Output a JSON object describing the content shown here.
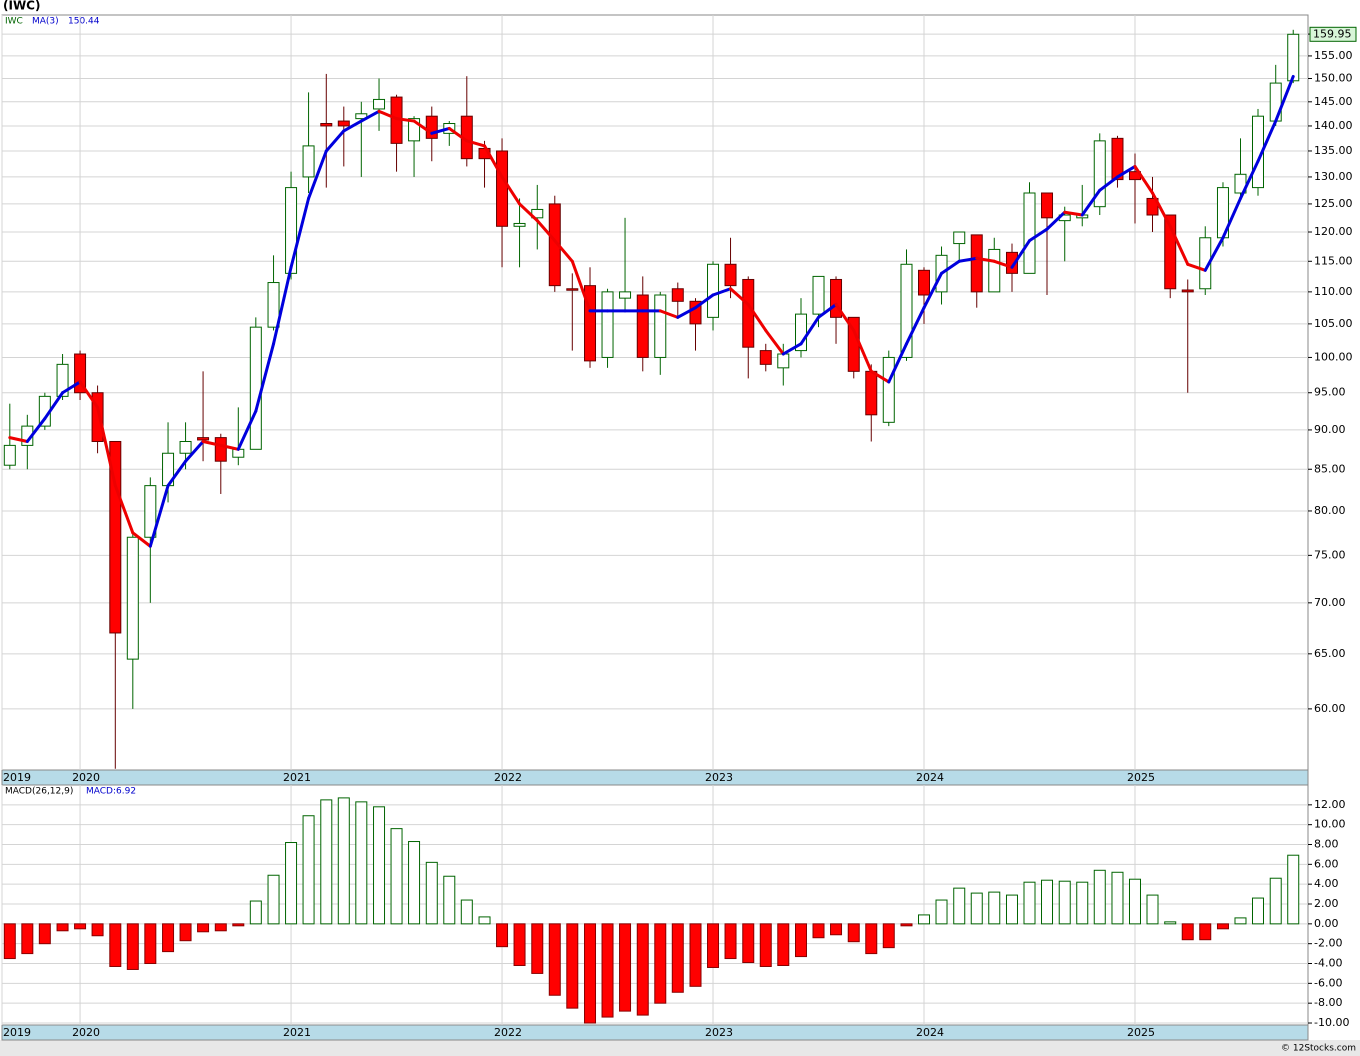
{
  "chart_data": [
    {
      "type": "candlestick",
      "title": "(IWC)",
      "symbol": "IWC",
      "log": true,
      "grid": true,
      "up_color": "#006400",
      "down_color": "#ff0000",
      "ma_up_color": "#0000dd",
      "ma_down_color": "#ee0000",
      "xlim": [
        2019.63,
        2025.82
      ],
      "xticks": [
        {
          "value": 2019.63,
          "label": "2019"
        },
        2020,
        2021,
        2022,
        2023,
        2024,
        2025
      ],
      "ylim": [
        54.9,
        164.5
      ],
      "yticks": [
        {
          "value": 60,
          "label": "60.00"
        },
        {
          "value": 65,
          "label": "65.00"
        },
        {
          "value": 70,
          "label": "70.00"
        },
        {
          "value": 75,
          "label": "75.00"
        },
        {
          "value": 80,
          "label": "80.00"
        },
        {
          "value": 85,
          "label": "85.00"
        },
        {
          "value": 90,
          "label": "90.00"
        },
        {
          "value": 95,
          "label": "95.00"
        },
        {
          "value": 100,
          "label": "100.00"
        },
        {
          "value": 105,
          "label": "105.00"
        },
        {
          "value": 110,
          "label": "110.00"
        },
        {
          "value": 115,
          "label": "115.00"
        },
        {
          "value": 120,
          "label": "120.00"
        },
        {
          "value": 125,
          "label": "125.00"
        },
        {
          "value": 130,
          "label": "130.00"
        },
        {
          "value": 135,
          "label": "135.00"
        },
        {
          "value": 140,
          "label": "140.00"
        },
        {
          "value": 145,
          "label": "145.00"
        },
        {
          "value": 150,
          "label": "150.00"
        },
        {
          "value": 155,
          "label": "155.00"
        },
        {
          "value": 160,
          "label": "160.00"
        }
      ],
      "x": [
        2019.667,
        2019.75,
        2019.833,
        2019.917,
        2020,
        2020.083,
        2020.167,
        2020.25,
        2020.333,
        2020.417,
        2020.5,
        2020.583,
        2020.667,
        2020.75,
        2020.833,
        2020.917,
        2021,
        2021.083,
        2021.167,
        2021.25,
        2021.333,
        2021.417,
        2021.5,
        2021.583,
        2021.667,
        2021.75,
        2021.833,
        2021.917,
        2022,
        2022.083,
        2022.167,
        2022.25,
        2022.333,
        2022.417,
        2022.5,
        2022.583,
        2022.667,
        2022.75,
        2022.833,
        2022.917,
        2023,
        2023.083,
        2023.167,
        2023.25,
        2023.333,
        2023.417,
        2023.5,
        2023.583,
        2023.667,
        2023.75,
        2023.833,
        2023.917,
        2024,
        2024.083,
        2024.167,
        2024.25,
        2024.333,
        2024.417,
        2024.5,
        2024.583,
        2024.667,
        2024.75,
        2024.833,
        2024.917,
        2025,
        2025.083,
        2025.167,
        2025.25,
        2025.333,
        2025.417,
        2025.5,
        2025.583,
        2025.667,
        2025.75
      ],
      "open": [
        85.5,
        88,
        90.5,
        94.5,
        100.5,
        95,
        88.5,
        64.5,
        77,
        83,
        87,
        89,
        89,
        86.5,
        87.5,
        104.5,
        113,
        130,
        140.5,
        141,
        141.5,
        143.5,
        146,
        137,
        142,
        138.5,
        142,
        135.5,
        135,
        121,
        122.5,
        125,
        110.5,
        111,
        100,
        109,
        109.5,
        100,
        110.5,
        108.5,
        106,
        114.5,
        112,
        101,
        98.5,
        101,
        106.5,
        112,
        106,
        98,
        91,
        100,
        113.5,
        110,
        118,
        119.5,
        110,
        116.5,
        113,
        127,
        122,
        122.5,
        124.5,
        137.5,
        131,
        126,
        123,
        110.3,
        110.5,
        119,
        127,
        128,
        141,
        149.5
      ],
      "high": [
        93.5,
        92,
        95,
        100.5,
        101,
        96,
        88.5,
        77.5,
        84,
        91,
        91,
        98,
        89.5,
        93,
        106,
        116,
        131,
        147,
        151,
        144,
        145,
        150,
        146.5,
        142,
        144,
        141,
        150.5,
        137,
        137.5,
        126,
        128.5,
        126.5,
        113,
        114,
        110.5,
        122.5,
        112.5,
        110,
        111.5,
        109,
        115,
        119,
        112.5,
        102,
        102,
        109,
        112.5,
        112.5,
        106,
        99,
        101,
        117,
        114,
        117.5,
        120,
        119.5,
        119,
        118,
        129,
        127,
        124.5,
        128.5,
        138.5,
        138,
        134.5,
        130,
        123,
        112,
        121,
        129,
        137.5,
        143.5,
        153,
        161
      ],
      "low": [
        85,
        85,
        90,
        94,
        94,
        87,
        55,
        60,
        70,
        81,
        85,
        86,
        82,
        85.5,
        87.5,
        104,
        112,
        127,
        128,
        132,
        130,
        139,
        131,
        130,
        133,
        136,
        132,
        128,
        114,
        114,
        117,
        110,
        101,
        98.5,
        98.5,
        107,
        98,
        97.5,
        106,
        101,
        104,
        109,
        97,
        98,
        96,
        100,
        104.5,
        102,
        97,
        88.5,
        90.5,
        99.5,
        105,
        108,
        115,
        107.5,
        110,
        110,
        113,
        109.5,
        115,
        121,
        123,
        128,
        121.5,
        120,
        109,
        95,
        109.5,
        117.5,
        125.5,
        126.5,
        140,
        149
      ],
      "close": [
        88,
        90.5,
        94.5,
        99,
        95,
        88.5,
        67,
        77,
        83,
        87,
        88.5,
        88.7,
        86,
        87.5,
        104.5,
        111.5,
        128,
        136,
        140,
        140,
        142.5,
        145.5,
        136.5,
        141.5,
        137.5,
        140.5,
        133.5,
        133.5,
        121,
        121.5,
        124,
        111,
        110.3,
        99.5,
        110,
        110,
        100,
        109.5,
        108.5,
        105,
        114.5,
        111,
        101.5,
        99,
        100.5,
        106.5,
        112.5,
        106,
        98,
        92,
        100,
        114.5,
        109.5,
        116,
        120,
        110,
        117,
        113,
        127,
        122.5,
        123,
        123,
        137,
        129.5,
        129.5,
        123,
        110.5,
        110,
        119,
        128,
        130.5,
        142,
        149,
        159.95
      ],
      "ma": {
        "name": "MA(3)",
        "values": [
          89,
          88.5,
          91.5,
          95,
          96.5,
          93,
          83,
          77.5,
          76,
          83,
          86,
          88.5,
          88,
          87.5,
          92.5,
          102,
          114,
          126,
          135,
          139,
          141,
          143,
          141.5,
          141,
          138.5,
          139.5,
          137,
          136,
          130,
          125,
          122,
          118.5,
          115,
          107,
          107,
          107,
          107,
          107,
          106,
          107.5,
          109.5,
          110.5,
          108,
          104,
          100.5,
          102,
          106,
          108,
          104,
          98,
          96.5,
          102,
          107.5,
          113,
          115,
          115.5,
          115,
          114,
          118.5,
          120.5,
          123.5,
          123,
          127.5,
          130,
          132,
          127,
          121,
          114.5,
          113.5,
          119,
          126,
          133,
          141,
          150.44
        ]
      }
    },
    {
      "type": "bar",
      "name": "MACD(26,12,9)",
      "readout": "MACD:6.92",
      "grid": true,
      "up_color": "#006400",
      "down_color": "#ff0000",
      "ylim": [
        -10.2,
        14.0
      ],
      "yticks": [
        {
          "value": -10,
          "label": "-10.00"
        },
        {
          "value": -8,
          "label": "-8.00"
        },
        {
          "value": -6,
          "label": "-6.00"
        },
        {
          "value": -4,
          "label": "-4.00"
        },
        {
          "value": -2,
          "label": "-2.00"
        },
        {
          "value": 0,
          "label": "0.00"
        },
        {
          "value": 2,
          "label": "2.00"
        },
        {
          "value": 4,
          "label": "4.00"
        },
        {
          "value": 6,
          "label": "6.00"
        },
        {
          "value": 8,
          "label": "8.00"
        },
        {
          "value": 10,
          "label": "10.00"
        },
        {
          "value": 12,
          "label": "12.00"
        }
      ],
      "values": [
        -3.5,
        -3,
        -2,
        -0.7,
        -0.5,
        -1.2,
        -4.3,
        -4.6,
        -4,
        -2.8,
        -1.7,
        -0.8,
        -0.7,
        -0.2,
        2.3,
        4.9,
        8.2,
        10.9,
        12.5,
        12.7,
        12.3,
        11.8,
        9.6,
        8.3,
        6.2,
        4.8,
        2.4,
        0.7,
        -2.3,
        -4.2,
        -5,
        -7.2,
        -8.5,
        -10,
        -9.4,
        -8.8,
        -9.2,
        -8,
        -6.9,
        -6.3,
        -4.4,
        -3.5,
        -3.9,
        -4.3,
        -4.2,
        -3.3,
        -1.4,
        -1.1,
        -1.8,
        -3,
        -2.4,
        -0.2,
        0.9,
        2.4,
        3.6,
        3.1,
        3.2,
        2.9,
        4.2,
        4.4,
        4.3,
        4.2,
        5.4,
        5.2,
        4.5,
        2.9,
        0.2,
        -1.6,
        -1.6,
        -0.5,
        0.6,
        2.6,
        4.6,
        6.92
      ]
    }
  ],
  "footer": "© 12Stocks.com"
}
